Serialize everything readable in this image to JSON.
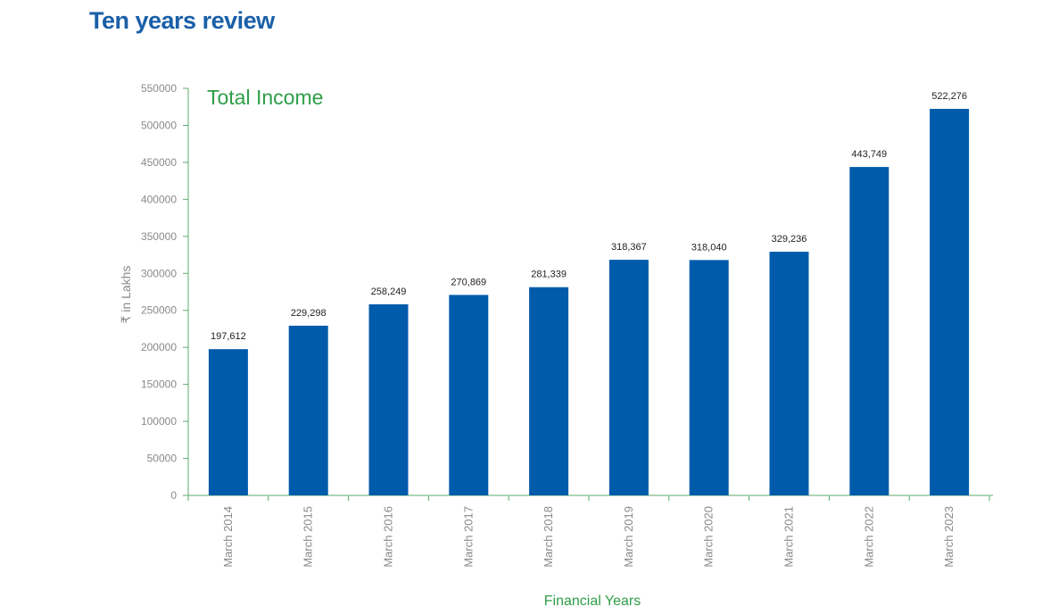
{
  "page": {
    "heading": "Ten years review"
  },
  "colors": {
    "heading": "#1a5fa8",
    "bar": "#005bab",
    "axis": "#5cad6e",
    "chart_title": "#2e9e47",
    "tick_text": "#8a8a8a",
    "value_label": "#222222"
  },
  "chart_data": {
    "type": "bar",
    "title": "Total Income",
    "xlabel": "Financial Years",
    "ylabel": "₹ in Lakhs",
    "ylim": [
      0,
      550000
    ],
    "yticks": [
      "0",
      "50000",
      "100000",
      "150000",
      "200000",
      "250000",
      "300000",
      "350000",
      "400000",
      "450000",
      "500000",
      "550000"
    ],
    "categories": [
      "March 2014",
      "March 2015",
      "March 2016",
      "March 2017",
      "March 2018",
      "March 2019",
      "March 2020",
      "March 2021",
      "March 2022",
      "March 2023"
    ],
    "values": [
      197612,
      229298,
      258249,
      270869,
      281339,
      318367,
      318040,
      329236,
      443749,
      522276
    ],
    "value_labels": [
      "197,612",
      "229,298",
      "258,249",
      "270,869",
      "281,339",
      "318,367",
      "318,040",
      "329,236",
      "443,749",
      "522,276"
    ],
    "grid": false,
    "legend": "none"
  }
}
